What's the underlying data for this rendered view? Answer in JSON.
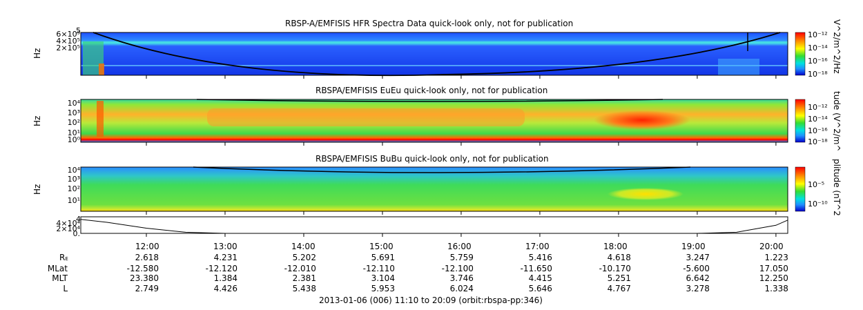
{
  "chart_data": [
    {
      "type": "heatmap",
      "title": "RBSP-A/EMFISIS  HFR Spectra Data quick-look only, not for publication",
      "ylabel": "Hz",
      "ytick_labels": [
        "6×10⁵",
        "4×10⁵",
        "2×10⁵"
      ],
      "ytick_extra": "5",
      "colorbar_label": "V^2/m^2/Hz",
      "colorbar_ticks": [
        "10⁻¹²",
        "10⁻¹⁴",
        "10⁻¹⁶",
        "10⁻¹⁸"
      ],
      "colors": {
        "background": "#1a3cff",
        "band": "#3fd6e8",
        "low_noise": "#2d8fff"
      }
    },
    {
      "type": "heatmap",
      "title": "RBSPA/EMFISIS  EuEu quick-look only, not for publication",
      "ylabel": "Hz",
      "ytick_labels": [
        "10⁴",
        "10³",
        "10²",
        "10¹",
        "10⁰"
      ],
      "colorbar_label": "tude (V^2/m^",
      "colorbar_ticks": [
        "10⁻¹²",
        "10⁻¹⁴",
        "10⁻¹⁶",
        "10⁻¹⁸"
      ],
      "colors": {
        "background": "#2bd24a",
        "hot": "#ff7a1a",
        "core": "#ff2a00"
      }
    },
    {
      "type": "heatmap",
      "title": "RBSPA/EMFISIS  BuBu quick-look only, not for publication",
      "ylabel": "Hz",
      "ytick_labels": [
        "10⁴",
        "10³",
        "10²",
        "10¹"
      ],
      "colorbar_label": "plitude (nT^2",
      "colorbar_ticks": [
        "10⁻⁵",
        "10⁻¹⁰"
      ],
      "colors": {
        "background": "#2bd24a",
        "high": "#1e90ff",
        "spot": "#ffe000"
      }
    },
    {
      "type": "line",
      "ytick_labels": [
        "4×10⁴",
        "2×10⁴",
        "0."
      ],
      "y_top_label": "4",
      "x": [
        "11:10",
        "11:30",
        "12:00",
        "12:30",
        "13:00",
        "19:00",
        "19:30",
        "20:00",
        "20:09"
      ],
      "y": [
        38000,
        30000,
        14000,
        3000,
        0,
        0,
        3000,
        22000,
        36000
      ],
      "ylim": [
        0,
        45000
      ]
    }
  ],
  "time_axis": {
    "ticks": [
      "12:00",
      "13:00",
      "14:00",
      "15:00",
      "16:00",
      "17:00",
      "18:00",
      "19:00",
      "20:00"
    ]
  },
  "ephemeris": {
    "row_labels": [
      "RE",
      "MLat",
      "MLT",
      "L"
    ],
    "re_label_main": "R",
    "re_label_sub": "E",
    "rows": [
      [
        "2.618",
        "4.231",
        "5.202",
        "5.691",
        "5.759",
        "5.416",
        "4.618",
        "3.247",
        "1.223"
      ],
      [
        "-12.580",
        "-12.120",
        "-12.010",
        "-12.110",
        "-12.100",
        "-11.650",
        "-10.170",
        "-5.600",
        "17.050"
      ],
      [
        "23.380",
        "1.384",
        "2.381",
        "3.104",
        "3.746",
        "4.415",
        "5.251",
        "6.642",
        "12.250"
      ],
      [
        "2.749",
        "4.426",
        "5.438",
        "5.953",
        "6.024",
        "5.646",
        "4.767",
        "3.278",
        "1.338"
      ]
    ]
  },
  "footer": "2013-01-06 (006) 11:10 to 20:09 (orbit:rbspa-pp:346)"
}
